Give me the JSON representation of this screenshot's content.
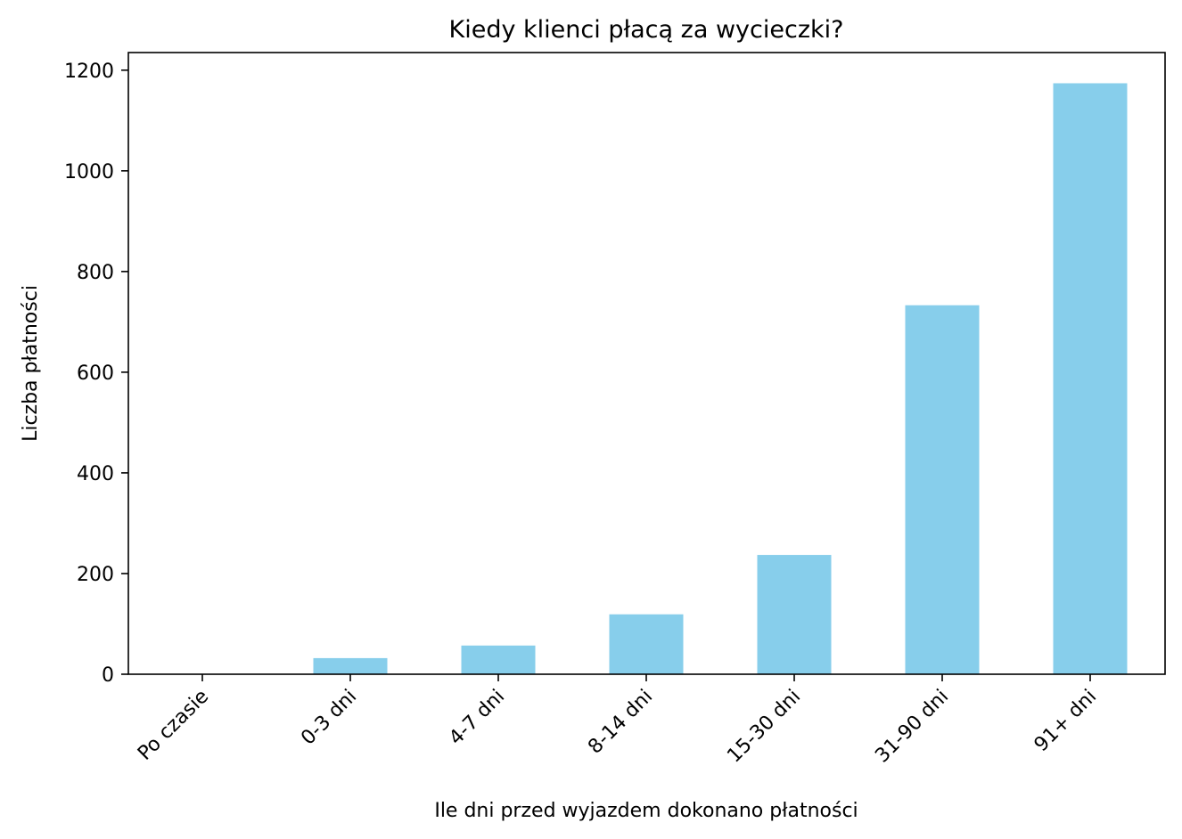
{
  "chart_data": {
    "type": "bar",
    "title": "Kiedy klienci płacą za wycieczki?",
    "xlabel": "Ile dni przed wyjazdem dokonano płatności",
    "ylabel": "Liczba płatności",
    "categories": [
      "Po czasie",
      "0-3 dni",
      "4-7 dni",
      "8-14 dni",
      "15-30 dni",
      "31-90 dni",
      "91+ dni"
    ],
    "values": [
      0,
      32,
      57,
      119,
      237,
      733,
      1174
    ],
    "ylim": [
      0,
      1235
    ],
    "yticks": [
      0,
      200,
      400,
      600,
      800,
      1000,
      1200
    ],
    "bar_color": "#87ceeb",
    "grid": false,
    "legend": "none"
  }
}
